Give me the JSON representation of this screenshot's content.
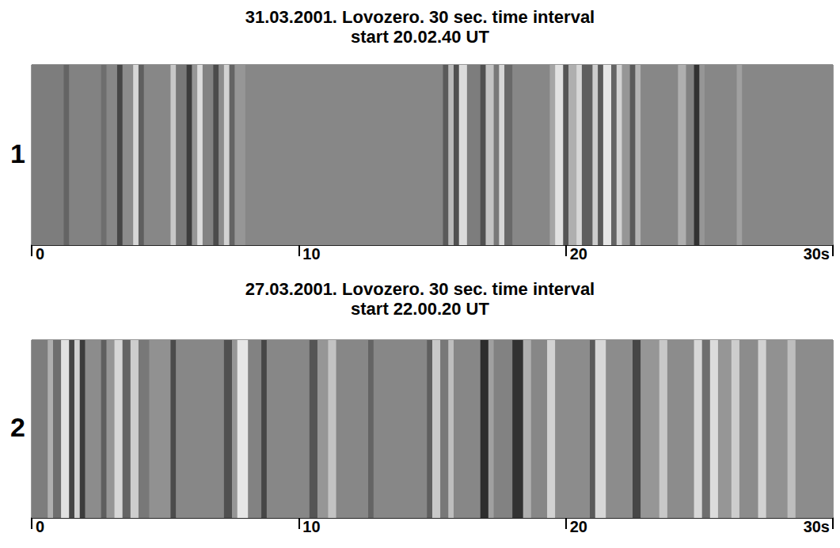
{
  "chart_data": [
    {
      "type": "heatmap",
      "panel": "1",
      "title": "31.03.2001. Lovozero. 30 sec. time interval",
      "subtitle": "start 20.02.40 UT",
      "bins": [
        0,
        1.2,
        1.4,
        2.6,
        2.8,
        3.2,
        3.4,
        3.8,
        4.0,
        4.2,
        5.2,
        5.4,
        5.8,
        6.0,
        6.2,
        6.4,
        6.8,
        7.0,
        7.2,
        7.4,
        7.6,
        8.0,
        15.4,
        15.6,
        15.8,
        16.0,
        16.3,
        16.8,
        17.0,
        17.3,
        17.5,
        17.7,
        18.0,
        19.4,
        19.6,
        19.9,
        20.1,
        20.4,
        20.6,
        21.0,
        21.2,
        21.4,
        21.7,
        21.9,
        22.1,
        22.4,
        22.6,
        22.8,
        24.2,
        24.5,
        24.8,
        25.0,
        25.2,
        26.4,
        26.6,
        30
      ],
      "values": [
        125,
        100,
        130,
        110,
        135,
        70,
        140,
        215,
        95,
        135,
        200,
        120,
        60,
        150,
        220,
        130,
        75,
        140,
        210,
        100,
        150,
        135,
        90,
        185,
        80,
        220,
        125,
        80,
        195,
        120,
        215,
        105,
        135,
        165,
        225,
        85,
        175,
        215,
        95,
        205,
        90,
        230,
        100,
        210,
        150,
        90,
        180,
        135,
        175,
        130,
        50,
        150,
        135,
        160,
        135
      ],
      "xlim": [
        0,
        30
      ],
      "xticks": [
        0,
        10,
        20,
        {
          "value": 30,
          "label": "30s"
        }
      ],
      "tick_labels": "x",
      "grid": false
    },
    {
      "type": "heatmap",
      "panel": "2",
      "title": "27.03.2001. Lovozero. 30 sec. time interval",
      "subtitle": "start 22.00.20 UT",
      "bins": [
        0,
        0.6,
        0.8,
        1.1,
        1.4,
        1.6,
        1.8,
        2.0,
        2.6,
        2.8,
        3.1,
        3.4,
        3.7,
        4.0,
        4.4,
        5.2,
        5.4,
        7.2,
        7.5,
        7.7,
        8.1,
        8.6,
        8.8,
        10.4,
        10.7,
        11.1,
        11.4,
        12.6,
        12.8,
        14.8,
        15.0,
        15.3,
        15.6,
        15.8,
        16.8,
        17.1,
        17.3,
        18.0,
        18.4,
        18.7,
        19.3,
        19.6,
        20.9,
        21.1,
        21.5,
        22.5,
        22.8,
        23.5,
        23.8,
        24.8,
        25.1,
        25.4,
        25.7,
        26.2,
        26.5,
        27.2,
        27.5,
        28.3,
        28.6,
        30
      ],
      "values": [
        125,
        175,
        110,
        225,
        70,
        210,
        60,
        140,
        95,
        150,
        215,
        100,
        205,
        120,
        145,
        75,
        135,
        80,
        150,
        230,
        130,
        70,
        135,
        85,
        150,
        195,
        135,
        100,
        135,
        95,
        200,
        120,
        190,
        135,
        45,
        160,
        130,
        50,
        175,
        135,
        210,
        140,
        90,
        215,
        140,
        70,
        150,
        200,
        140,
        215,
        110,
        220,
        150,
        205,
        140,
        210,
        145,
        190,
        140
      ],
      "xlim": [
        0,
        30
      ],
      "xticks": [
        0,
        10,
        20,
        {
          "value": 30,
          "label": "30s"
        }
      ],
      "tick_labels": "x",
      "grid": false
    }
  ]
}
